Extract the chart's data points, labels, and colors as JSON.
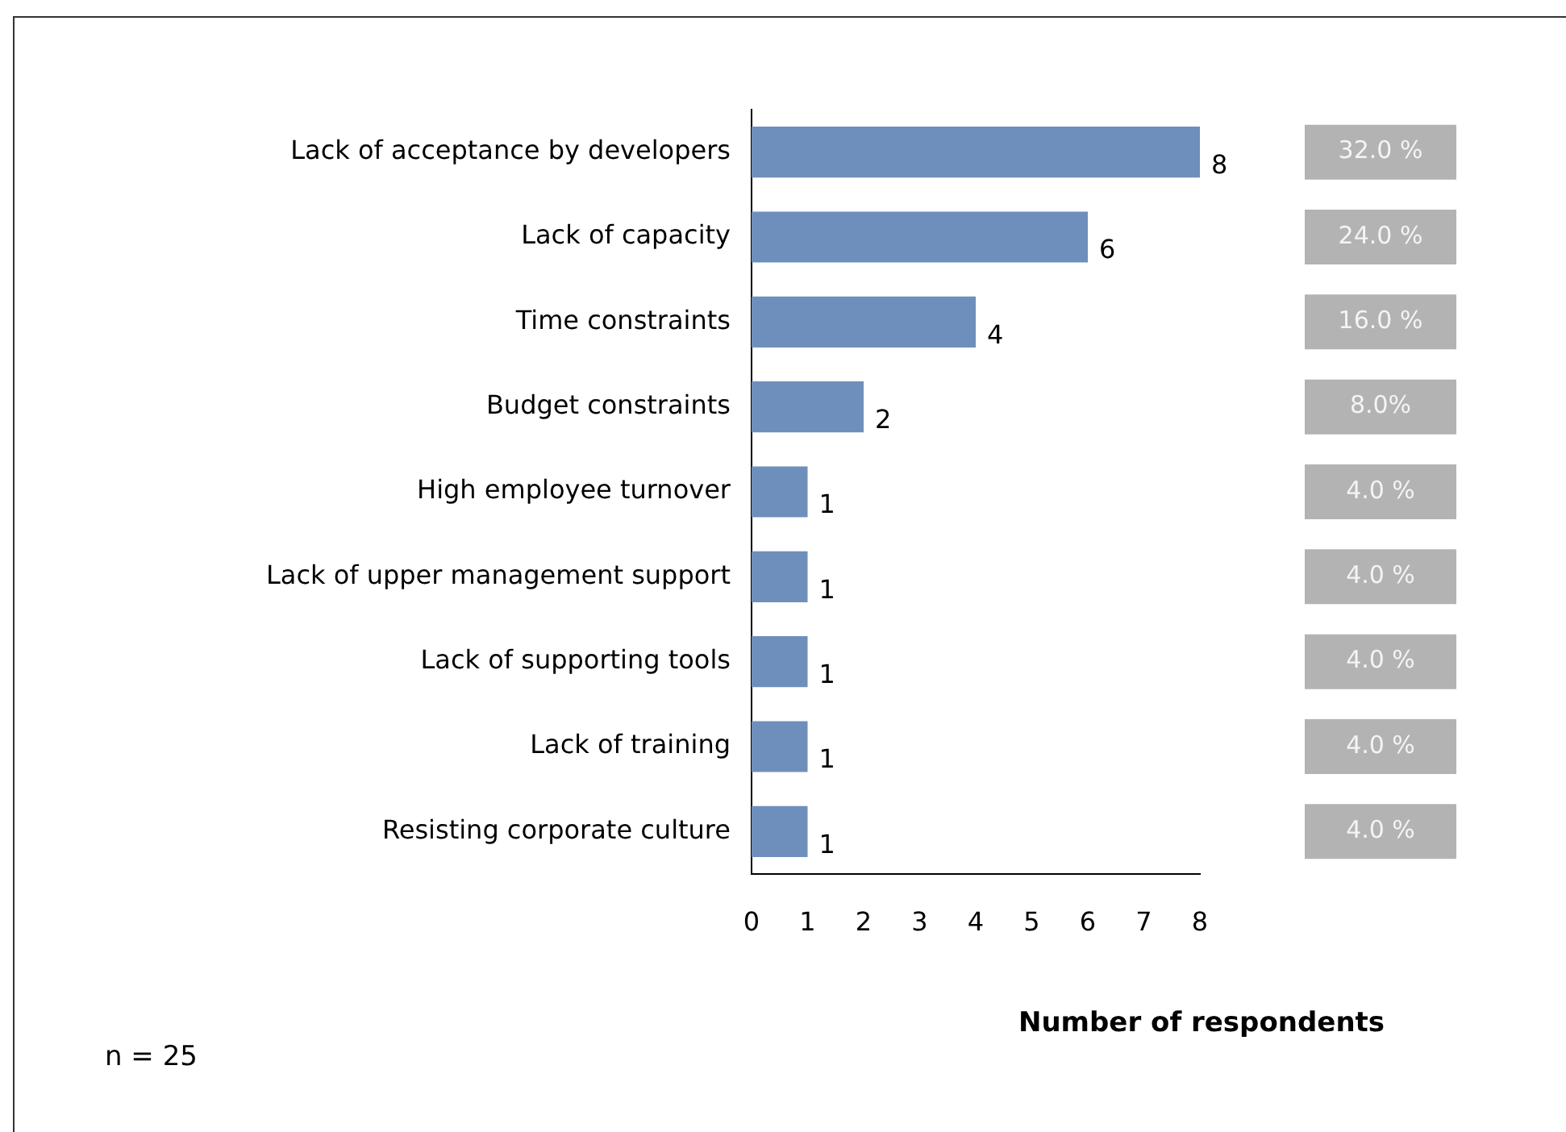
{
  "chart_data": {
    "type": "bar",
    "orientation": "horizontal",
    "xlabel": "Number of respondents",
    "categories": [
      "Lack of acceptance by developers",
      "Lack of capacity",
      "Time constraints",
      "Budget constraints",
      "High employee turnover",
      "Lack of upper management support",
      "Lack of supporting tools",
      "Lack of training",
      "Resisting corporate culture"
    ],
    "values": [
      8,
      6,
      4,
      2,
      1,
      1,
      1,
      1,
      1
    ],
    "color": "#6e8fbb",
    "xlim": [
      0,
      8
    ],
    "xticks": [
      0,
      1,
      2,
      3,
      4,
      5,
      6,
      7,
      8
    ],
    "grid": false,
    "legend": false,
    "data_labels": true,
    "annotations": [
      "32.0 %",
      "24.0 %",
      "16.0 %",
      "8.0%",
      "4.0 %",
      "4.0 %",
      "4.0 %",
      "4.0 %",
      "4.0 %",
      "n = 25"
    ]
  }
}
